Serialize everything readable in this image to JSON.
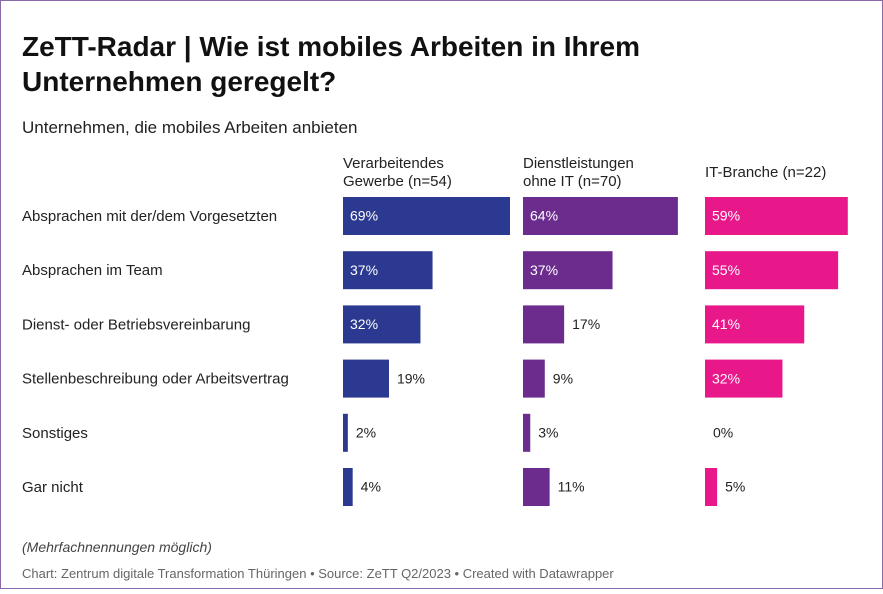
{
  "chart_data": {
    "type": "bar",
    "title": "ZeTT-Radar | Wie ist mobiles Arbeiten in Ihrem Unternehmen geregelt?",
    "subtitle": "Unternehmen, die mobiles Arbeiten anbieten",
    "categories": [
      "Absprachen mit der/dem Vorgesetzten",
      "Absprachen im Team",
      "Dienst- oder Betriebsvereinbarung",
      "Stellenbeschreibung oder Arbeitsvertrag",
      "Sonstiges",
      "Gar nicht"
    ],
    "series": [
      {
        "name": "Verarbeitendes Gewerbe (n=54)",
        "color": "#2b3990",
        "values": [
          69,
          37,
          32,
          19,
          2,
          4
        ],
        "value_labels": [
          "69%",
          "37%",
          "32%",
          "19%",
          "2%",
          "4%"
        ]
      },
      {
        "name": "Dienstleistungen ohne IT (n=70)",
        "color": "#6b2c8e",
        "values": [
          64,
          37,
          17,
          9,
          3,
          11
        ],
        "value_labels": [
          "64%",
          "37%",
          "17%",
          "9%",
          "3%",
          "11%"
        ]
      },
      {
        "name": "IT-Branche (n=22)",
        "color": "#e8178a",
        "values": [
          59,
          55,
          41,
          32,
          0,
          5
        ],
        "value_labels": [
          "59%",
          "55%",
          "41%",
          "32%",
          "0%",
          "5%"
        ]
      }
    ],
    "note": "(Mehrfachnennungen möglich)",
    "source": "Chart: Zentrum digitale Transformation Thüringen • Source: ZeTT Q2/2023 • Created with Datawrapper"
  }
}
